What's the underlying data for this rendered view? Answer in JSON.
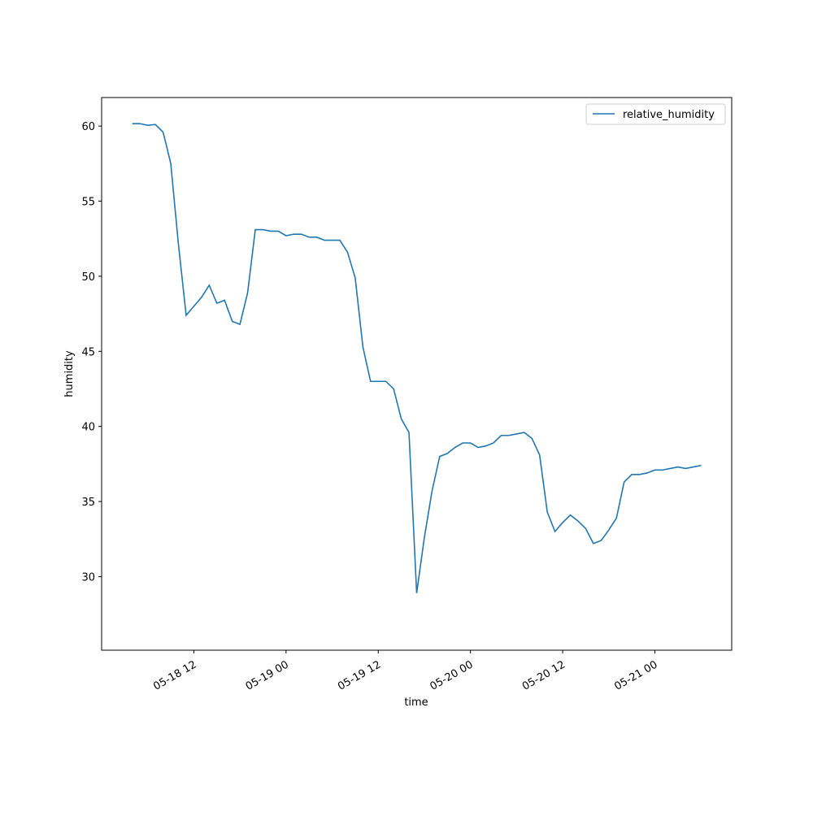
{
  "chart_data": {
    "type": "line",
    "x": [
      "05-18 04",
      "05-18 05",
      "05-18 06",
      "05-18 07",
      "05-18 08",
      "05-18 09",
      "05-18 10",
      "05-18 11",
      "05-18 12",
      "05-18 13",
      "05-18 14",
      "05-18 15",
      "05-18 16",
      "05-18 17",
      "05-18 18",
      "05-18 19",
      "05-18 20",
      "05-18 21",
      "05-18 22",
      "05-18 23",
      "05-19 00",
      "05-19 01",
      "05-19 02",
      "05-19 03",
      "05-19 04",
      "05-19 05",
      "05-19 06",
      "05-19 07",
      "05-19 08",
      "05-19 09",
      "05-19 10",
      "05-19 11",
      "05-19 12",
      "05-19 13",
      "05-19 14",
      "05-19 15",
      "05-19 16",
      "05-19 17",
      "05-19 18",
      "05-19 19",
      "05-19 20",
      "05-19 21",
      "05-19 22",
      "05-19 23",
      "05-20 00",
      "05-20 01",
      "05-20 02",
      "05-20 03",
      "05-20 04",
      "05-20 05",
      "05-20 06",
      "05-20 07",
      "05-20 08",
      "05-20 09",
      "05-20 10",
      "05-20 11",
      "05-20 12",
      "05-20 13",
      "05-20 14",
      "05-20 15",
      "05-20 16",
      "05-20 17",
      "05-20 18",
      "05-20 19",
      "05-20 20",
      "05-20 21",
      "05-20 22",
      "05-20 23",
      "05-21 00",
      "05-21 01",
      "05-21 02",
      "05-21 03",
      "05-21 04",
      "05-21 05",
      "05-21 06"
    ],
    "series": [
      {
        "name": "relative_humidity",
        "color": "#1f77b4",
        "values": [
          60.16,
          60.16,
          60.05,
          60.1,
          59.6,
          57.5,
          52.1,
          47.4,
          48.0,
          48.6,
          49.4,
          48.2,
          48.4,
          47.0,
          46.8,
          48.9,
          53.1,
          53.1,
          53.0,
          53.0,
          52.7,
          52.8,
          52.8,
          52.6,
          52.6,
          52.4,
          52.4,
          52.4,
          51.6,
          49.9,
          45.3,
          43.0,
          43.0,
          43.0,
          42.5,
          40.5,
          39.6,
          28.9,
          32.6,
          35.7,
          38.0,
          38.2,
          38.6,
          38.9,
          38.9,
          38.6,
          38.7,
          38.9,
          39.4,
          39.4,
          39.5,
          39.6,
          39.2,
          38.1,
          34.3,
          33.0,
          33.6,
          34.1,
          33.7,
          33.2,
          32.2,
          32.4,
          33.1,
          33.9,
          36.3,
          36.8,
          36.8,
          36.9,
          37.1,
          37.1,
          37.2,
          37.3,
          37.2,
          37.3,
          37.4
        ]
      }
    ],
    "xlabel": "time",
    "ylabel": "humidity",
    "xlim": [
      "05-18 00",
      "05-21 10"
    ],
    "xticks": [
      "05-18 12",
      "05-19 00",
      "05-19 12",
      "05-20 00",
      "05-20 12",
      "05-21 00"
    ],
    "ylim": [
      25.1,
      61.9
    ],
    "yticks": [
      30,
      35,
      40,
      45,
      50,
      55,
      60
    ],
    "legend": "upper right"
  }
}
